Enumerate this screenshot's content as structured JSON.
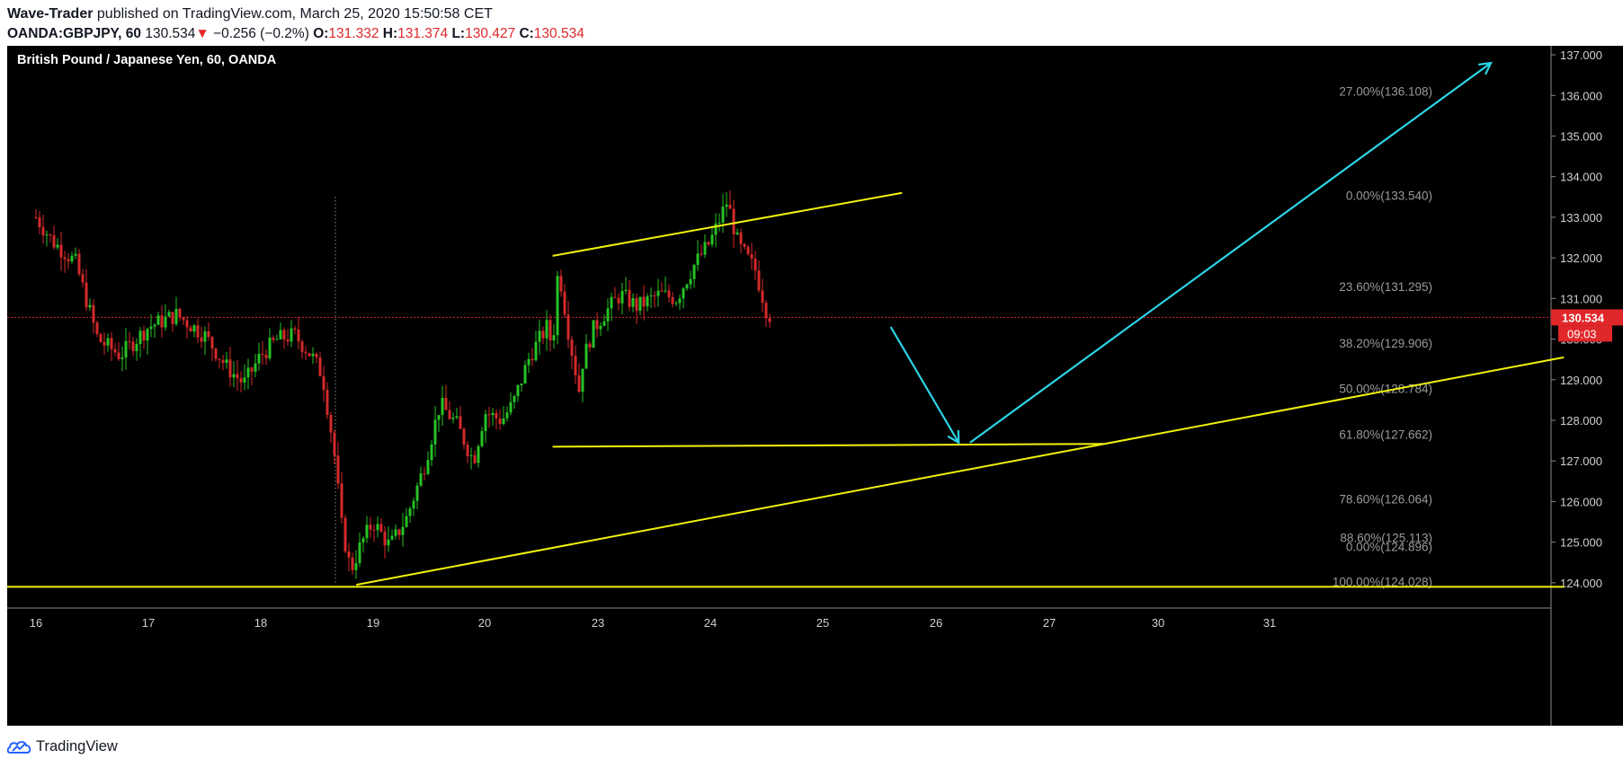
{
  "header": {
    "author": "Wave-Trader",
    "published_text": "published on TradingView.com, March 25, 2020 15:50:58 CET",
    "symbol": "OANDA:GBPJPY, 60",
    "last": "130.534",
    "change_arrow": "▼",
    "change": "−0.256 (−0.2%)",
    "o_label": "O:",
    "o_value": "131.332",
    "h_label": "H:",
    "h_value": "131.374",
    "l_label": "L:",
    "l_value": "130.427",
    "c_label": "C:",
    "c_value": "130.534"
  },
  "chart_data": {
    "type": "candlestick",
    "title": "British Pound / Japanese Yen, 60, OANDA",
    "ylim": [
      123.4,
      137.2
    ],
    "y_ticks": [
      "124.000",
      "125.000",
      "126.000",
      "127.000",
      "128.000",
      "129.000",
      "130.000",
      "131.000",
      "132.000",
      "133.000",
      "134.000",
      "135.000",
      "136.000",
      "137.000"
    ],
    "x_ticks": [
      "16",
      "17",
      "18",
      "19",
      "20",
      "23",
      "24",
      "25",
      "26",
      "27",
      "30",
      "31"
    ],
    "current_price": "130.534",
    "countdown": "09:03",
    "fib_upper": [
      {
        "label": "27.00%(136.108)",
        "price": 136.108
      },
      {
        "label": "0.00%(133.540)",
        "price": 133.54
      },
      {
        "label": "23.60%(131.295)",
        "price": 131.295
      },
      {
        "label": "38.20%(129.906)",
        "price": 129.906
      },
      {
        "label": "50.00%(128.784)",
        "price": 128.784
      },
      {
        "label": "61.80%(127.662)",
        "price": 127.662
      },
      {
        "label": "78.60%(126.064)",
        "price": 126.064
      },
      {
        "label": "88.60%(125.113)",
        "price": 125.113
      }
    ],
    "fib_lower": [
      {
        "label": "0.00%(124.896)",
        "price": 124.896
      },
      {
        "label": "100.00%(124.028)",
        "price": 124.028
      }
    ],
    "price_path": [
      [
        16.0,
        133.0
      ],
      [
        16.15,
        132.4
      ],
      [
        16.35,
        131.9
      ],
      [
        16.55,
        130.0
      ],
      [
        16.75,
        129.6
      ],
      [
        17.0,
        130.3
      ],
      [
        17.25,
        130.6
      ],
      [
        17.5,
        130.1
      ],
      [
        17.7,
        129.3
      ],
      [
        17.85,
        128.9
      ],
      [
        18.0,
        129.6
      ],
      [
        18.15,
        130.0
      ],
      [
        18.3,
        130.1
      ],
      [
        18.45,
        129.6
      ],
      [
        18.55,
        129.1
      ],
      [
        18.65,
        127.3
      ],
      [
        18.72,
        125.4
      ],
      [
        18.8,
        124.3
      ],
      [
        18.9,
        125.0
      ],
      [
        19.0,
        125.5
      ],
      [
        19.15,
        124.9
      ],
      [
        19.3,
        125.6
      ],
      [
        19.45,
        126.8
      ],
      [
        19.6,
        128.4
      ],
      [
        19.75,
        127.9
      ],
      [
        19.9,
        127.0
      ],
      [
        20.0,
        128.2
      ],
      [
        20.15,
        128.0
      ],
      [
        20.25,
        128.4
      ],
      [
        20.4,
        129.6
      ],
      [
        20.55,
        130.3
      ],
      [
        20.6,
        129.8
      ],
      [
        20.65,
        131.8
      ],
      [
        20.75,
        130.0
      ],
      [
        20.85,
        128.5
      ],
      [
        21.0,
        128.3
      ],
      [
        21.2,
        128.1
      ],
      [
        21.4,
        128.6
      ],
      [
        21.6,
        128.0
      ],
      [
        21.8,
        127.8
      ],
      [
        21.95,
        128.6
      ],
      [
        22.1,
        127.9
      ],
      [
        22.3,
        128.3
      ],
      [
        22.5,
        128.1
      ],
      [
        22.7,
        128.4
      ],
      [
        22.85,
        129.3
      ],
      [
        22.95,
        130.2
      ],
      [
        23.05,
        130.6
      ],
      [
        23.2,
        131.1
      ],
      [
        23.35,
        130.8
      ],
      [
        23.55,
        131.1
      ],
      [
        23.7,
        131.0
      ],
      [
        23.85,
        131.8
      ],
      [
        24.0,
        132.4
      ],
      [
        24.15,
        133.4
      ],
      [
        24.25,
        132.3
      ],
      [
        24.4,
        131.7
      ],
      [
        24.5,
        130.7
      ],
      [
        24.55,
        130.5
      ]
    ],
    "lines": [
      {
        "kind": "support",
        "points": [
          [
            14.9,
            123.9
          ],
          [
            31.7,
            123.9
          ]
        ]
      },
      {
        "kind": "trend",
        "points": [
          [
            18.85,
            123.95
          ],
          [
            31.7,
            129.55
          ]
        ]
      },
      {
        "kind": "channel-top",
        "points": [
          [
            20.6,
            132.05
          ],
          [
            25.7,
            133.6
          ]
        ]
      },
      {
        "kind": "base",
        "points": [
          [
            20.6,
            127.35
          ],
          [
            27.5,
            127.42
          ]
        ]
      }
    ],
    "arrows": [
      {
        "points": [
          [
            25.6,
            130.3
          ],
          [
            26.2,
            127.45
          ]
        ]
      },
      {
        "points": [
          [
            26.3,
            127.45
          ],
          [
            31.0,
            136.8
          ]
        ]
      }
    ]
  },
  "colors": {
    "background": "#000000",
    "up": "#26c226",
    "down": "#d42a2a",
    "yellow": "#f2f20c",
    "cyan": "#2cd4e6",
    "price_tag": "#e0272a"
  },
  "footer": {
    "brand": "TradingView"
  }
}
